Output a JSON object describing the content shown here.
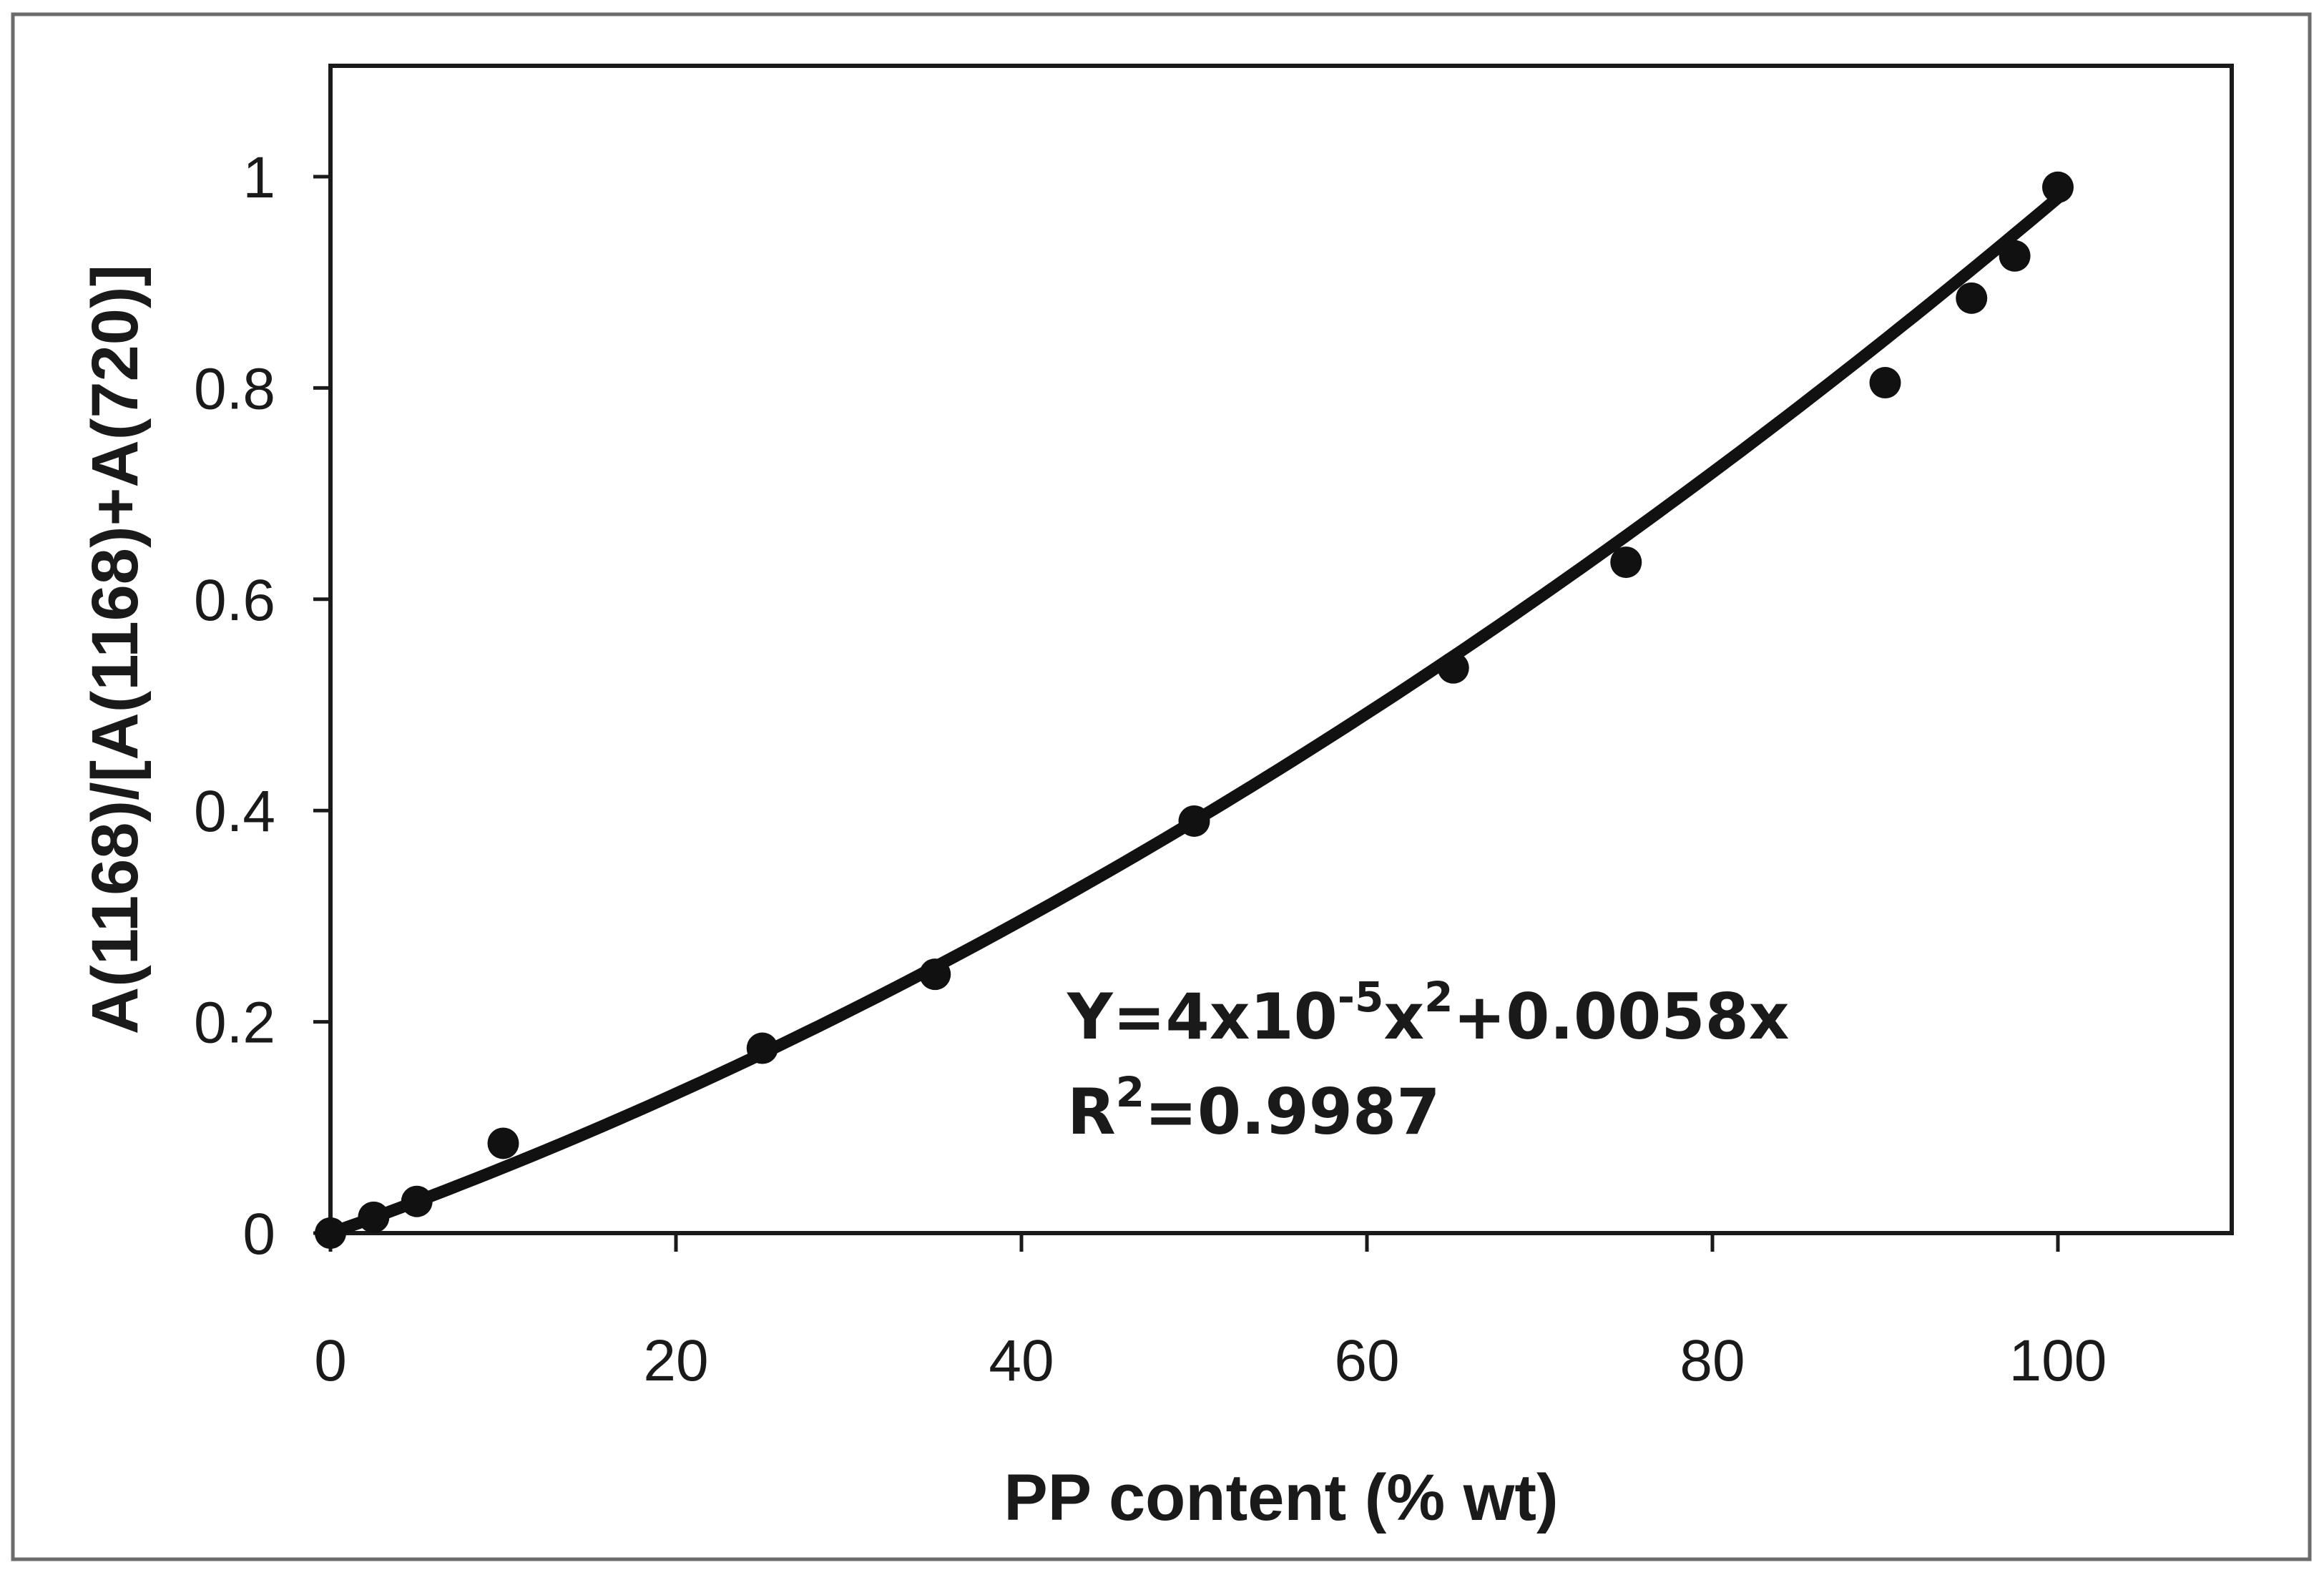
{
  "chart_data": {
    "type": "scatter",
    "title": "",
    "xlabel": "PP content (% wt)",
    "ylabel": "A(1168)/[A(1168)+A(720)]",
    "xlim": [
      0,
      110
    ],
    "ylim": [
      0,
      1.1
    ],
    "x_ticks": [
      "0",
      "20",
      "40",
      "60",
      "80",
      "100"
    ],
    "y_ticks": [
      "0",
      "0.2",
      "0.4",
      "0.6",
      "0.8",
      "1"
    ],
    "grid": false,
    "legend": "none",
    "series": [
      {
        "points": [
          {
            "x": 0,
            "y": 0.0
          },
          {
            "x": 2.5,
            "y": 0.015
          },
          {
            "x": 5,
            "y": 0.03
          },
          {
            "x": 10,
            "y": 0.085
          },
          {
            "x": 25,
            "y": 0.175
          },
          {
            "x": 35,
            "y": 0.245
          },
          {
            "x": 50,
            "y": 0.39
          },
          {
            "x": 65,
            "y": 0.535
          },
          {
            "x": 75,
            "y": 0.635
          },
          {
            "x": 90,
            "y": 0.805
          },
          {
            "x": 95,
            "y": 0.885
          },
          {
            "x": 97.5,
            "y": 0.925
          },
          {
            "x": 100,
            "y": 0.99
          }
        ]
      }
    ],
    "fit_curve": {
      "a": 4e-05,
      "b": 0.0058,
      "c": 0,
      "x_range": [
        0,
        100
      ]
    },
    "annotations": {
      "equation": {
        "prefix": "Y=4x10",
        "sup1": "-5",
        "mid": "x",
        "sup2": "2",
        "suffix": "+0.0058x"
      },
      "r_squared": {
        "prefix": "R",
        "sup": "2",
        "suffix": "=0.9987"
      }
    }
  }
}
